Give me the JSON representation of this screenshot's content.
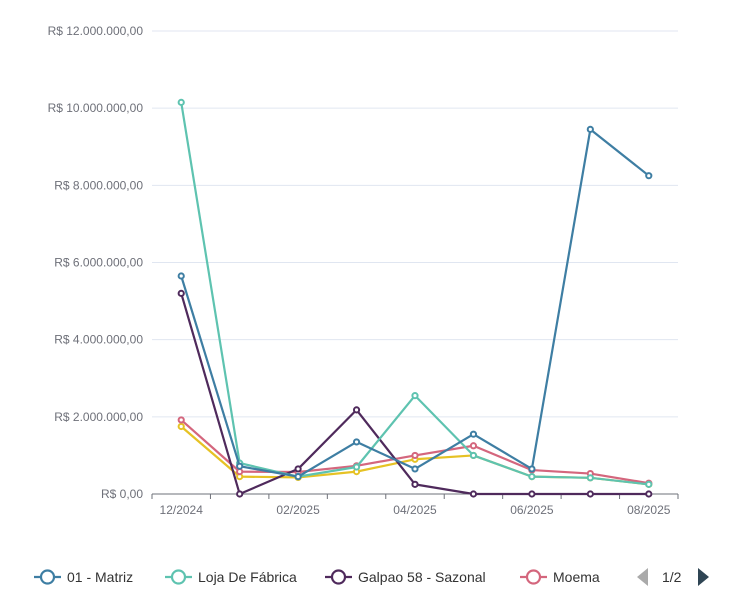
{
  "chart_data": {
    "type": "line",
    "x": [
      "12/2024",
      "01/2025",
      "02/2025",
      "03/2025",
      "04/2025",
      "05/2025",
      "06/2025",
      "07/2025",
      "08/2025"
    ],
    "x_tick_labels": [
      "12/2024",
      "02/2025",
      "04/2025",
      "06/2025",
      "08/2025"
    ],
    "ylim": [
      0,
      12000000
    ],
    "y_ticks": [
      0,
      2000000,
      4000000,
      6000000,
      8000000,
      10000000,
      12000000
    ],
    "y_tick_labels": [
      "R$ 0,00",
      "R$ 2.000.000,00",
      "R$ 4.000.000,00",
      "R$ 6.000.000,00",
      "R$ 8.000.000,00",
      "R$ 10.000.000,00",
      "R$ 12.000.000,00"
    ],
    "grid": true,
    "legend_position": "bottom",
    "series": [
      {
        "name": "01 - Matriz",
        "color": "#3e7ea3",
        "values": [
          5650000,
          720000,
          450000,
          1350000,
          650000,
          1550000,
          650000,
          9450000,
          8250000
        ]
      },
      {
        "name": "Loja De Fábrica",
        "color": "#5ec3b0",
        "values": [
          10150000,
          800000,
          450000,
          700000,
          2550000,
          1000000,
          450000,
          420000,
          250000
        ]
      },
      {
        "name": "Galpao 58 - Sazonal",
        "color": "#4f2a5c",
        "values": [
          5200000,
          0,
          650000,
          2180000,
          250000,
          0,
          0,
          0,
          0
        ]
      },
      {
        "name": "Moema",
        "color": "#d4667d",
        "values": [
          1920000,
          580000,
          570000,
          730000,
          1000000,
          1250000,
          620000,
          530000,
          280000
        ]
      },
      {
        "name": "",
        "color": "#e6c224",
        "values": [
          1750000,
          450000,
          430000,
          580000,
          900000,
          1000000,
          450000,
          420000,
          250000
        ]
      }
    ]
  },
  "legend": {
    "page": "1/2",
    "prev_icon": "triangle-left-icon",
    "next_icon": "triangle-right-icon",
    "prev_color": "#aaaaaa",
    "next_color": "#2f4554"
  }
}
